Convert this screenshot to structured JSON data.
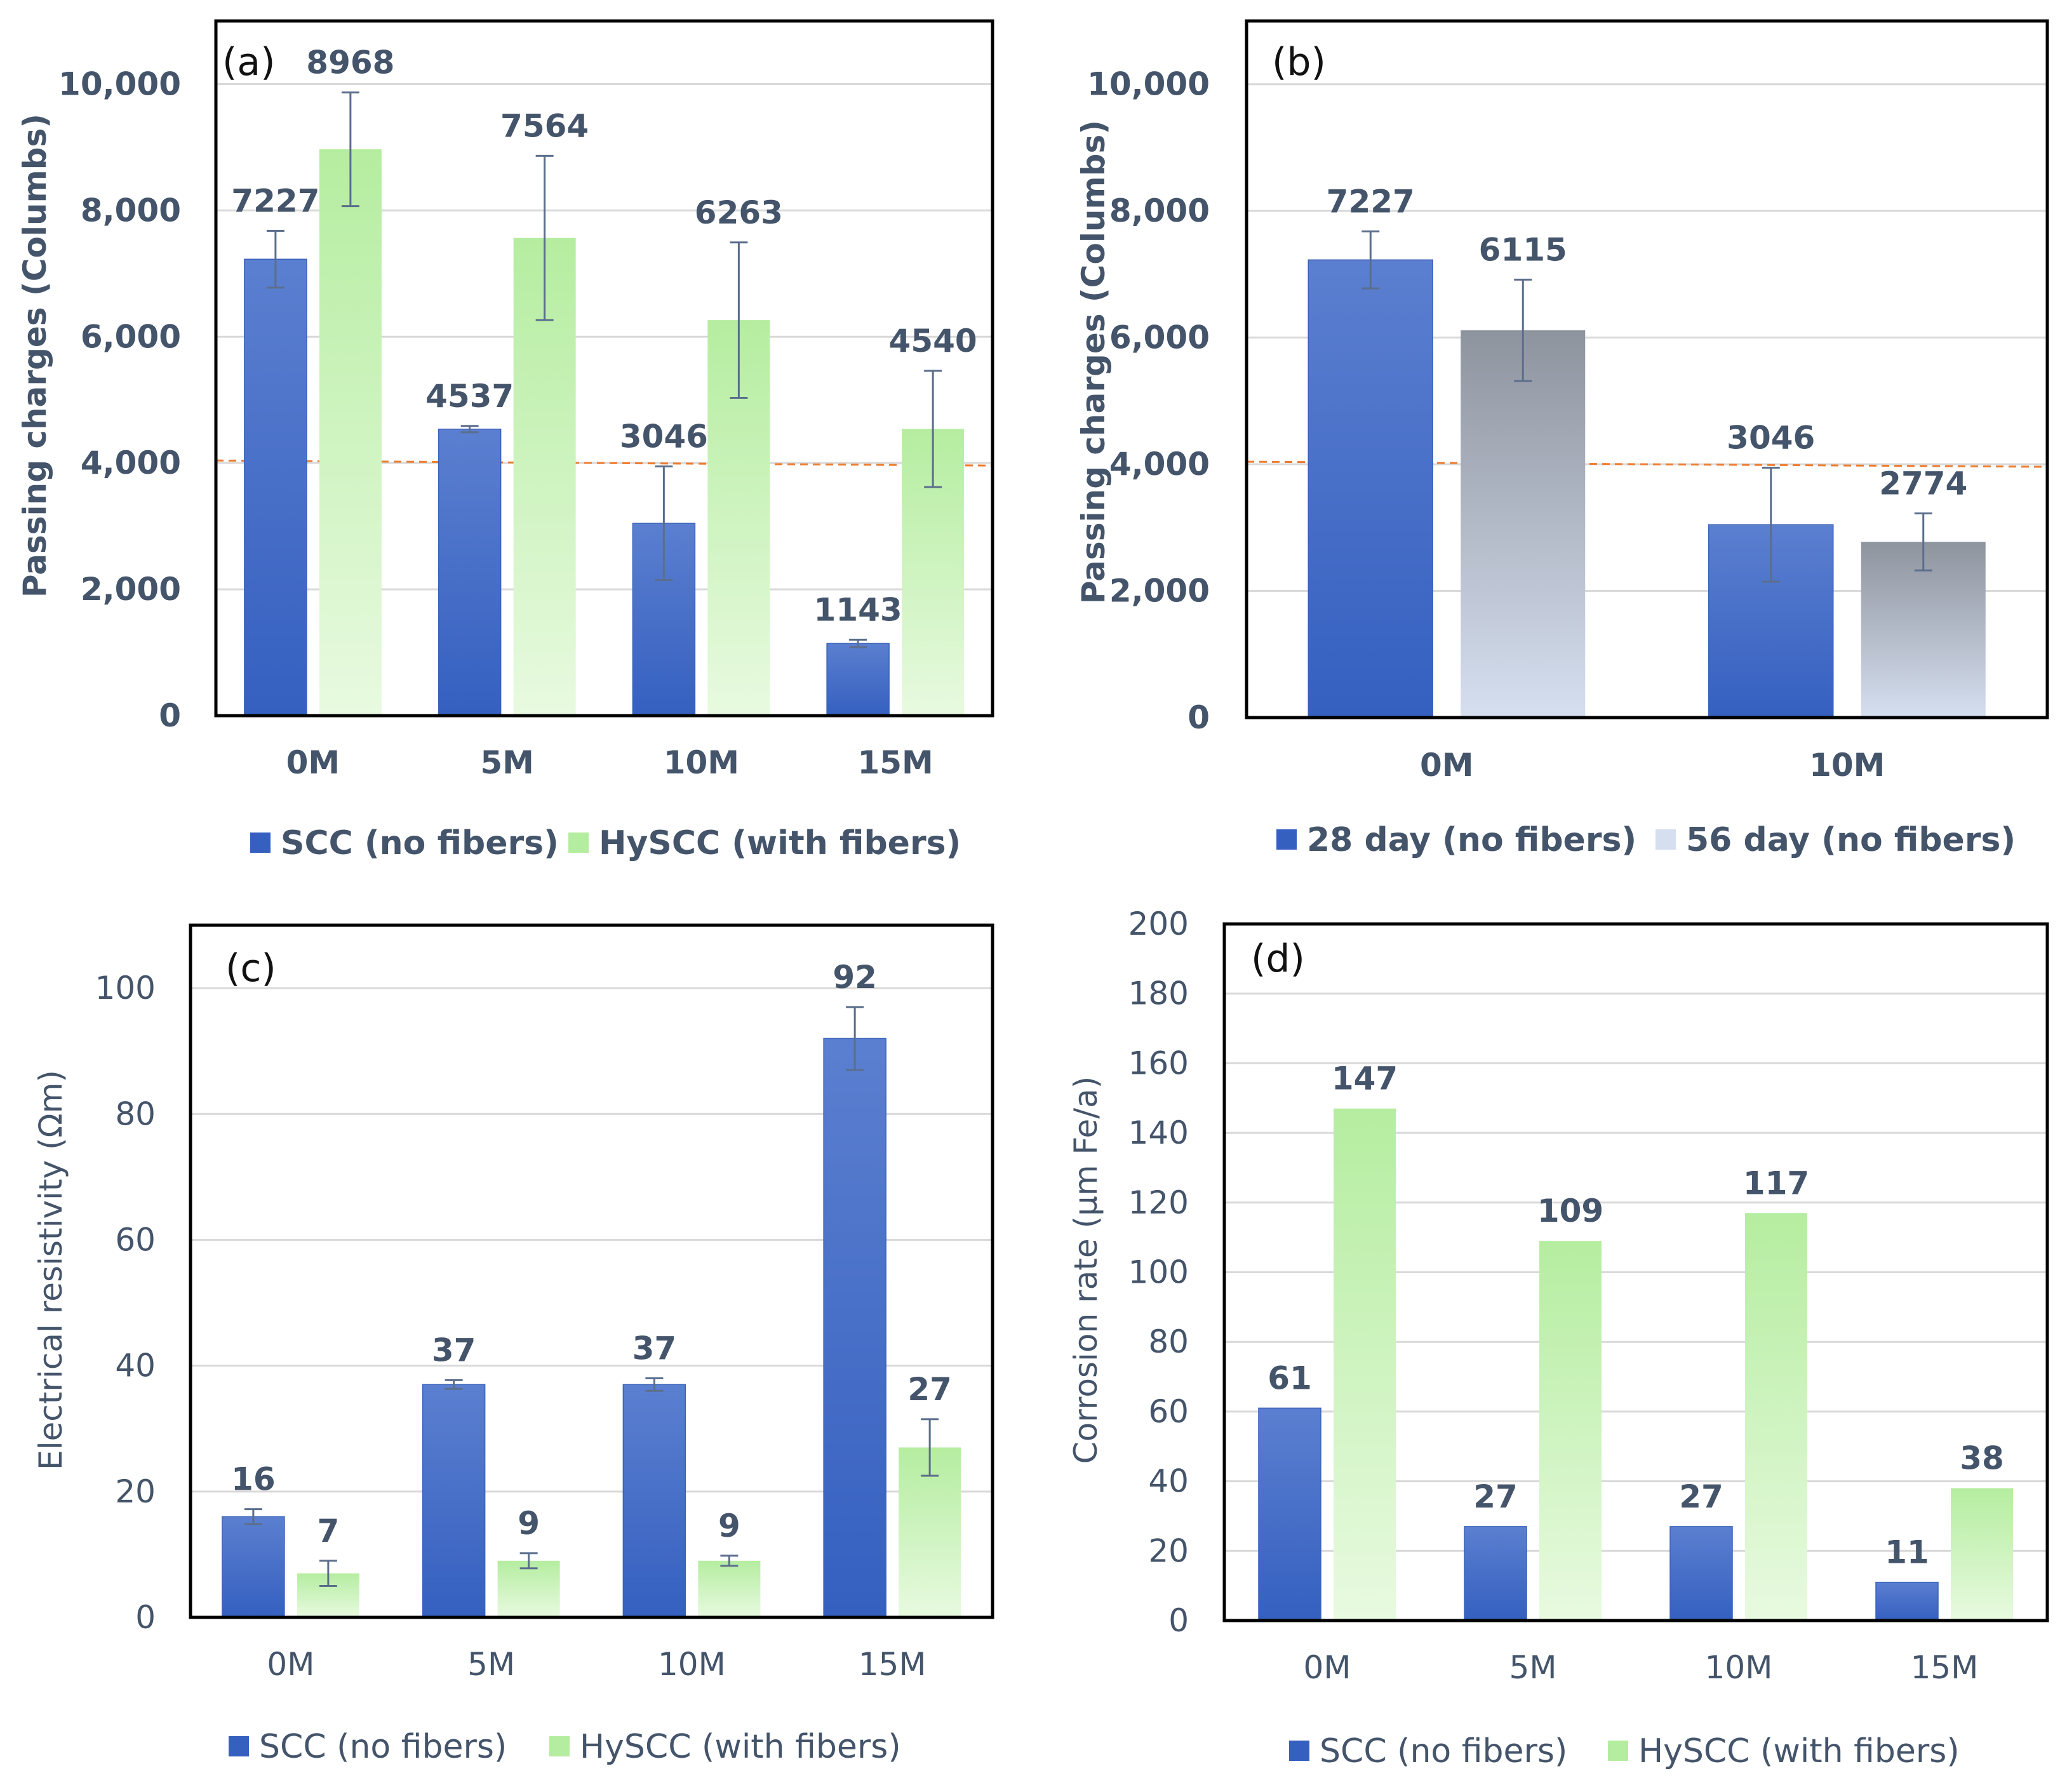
{
  "chart_data": [
    {
      "id": "a",
      "type": "bar",
      "panel_label": "(a)",
      "ylabel": "Passing charges (Columbs)",
      "ylim": [
        0,
        11000
      ],
      "yticks": [
        0,
        2000,
        4000,
        6000,
        8000,
        10000
      ],
      "ytick_labels": [
        "0",
        "2,000",
        "4,000",
        "6,000",
        "8,000",
        "10,000"
      ],
      "categories": [
        "0M",
        "5M",
        "10M",
        "15M"
      ],
      "series": [
        {
          "name": "SCC (no fibers)",
          "values": [
            7227,
            4537,
            3046,
            1143
          ],
          "errors": [
            450,
            50,
            900,
            60
          ],
          "data_labels": [
            "7227",
            "4537",
            "3046",
            "1143"
          ],
          "color_top": "#5b7fd0",
          "color_bottom": "#3560c0"
        },
        {
          "name": "HySCC (with fibers)",
          "values": [
            8968,
            7564,
            6263,
            4540
          ],
          "errors": [
            900,
            1300,
            1230,
            920
          ],
          "data_labels": [
            "8968",
            "7564",
            "6263",
            "4540"
          ],
          "color_top": "#b5eda0",
          "color_bottom": "#e8fae0"
        }
      ],
      "reference_line": 4000,
      "reference_color": "#ed7d31",
      "bold_text": true,
      "grid": true,
      "legend": "bottom"
    },
    {
      "id": "b",
      "type": "bar",
      "panel_label": "(b)",
      "ylabel": "Passing charges (Columbs)",
      "ylim": [
        0,
        11000
      ],
      "yticks": [
        0,
        2000,
        4000,
        6000,
        8000,
        10000
      ],
      "ytick_labels": [
        "0",
        "2,000",
        "4,000",
        "6,000",
        "8,000",
        "10,000"
      ],
      "categories": [
        "0M",
        "10M"
      ],
      "series": [
        {
          "name": "28 day (no fibers)",
          "values": [
            7227,
            3046
          ],
          "errors": [
            450,
            900
          ],
          "data_labels": [
            "7227",
            "3046"
          ],
          "color_top": "#5b7fd0",
          "color_bottom": "#3560c0"
        },
        {
          "name": "56 day (no fibers)",
          "values": [
            6115,
            2774
          ],
          "errors": [
            800,
            450
          ],
          "data_labels": [
            "6115",
            "2774"
          ],
          "color_top": "#8e949e",
          "color_bottom": "#d6dff0"
        }
      ],
      "reference_line": 4000,
      "reference_color": "#ed7d31",
      "bold_text": true,
      "grid": true,
      "legend": "bottom"
    },
    {
      "id": "c",
      "type": "bar",
      "panel_label": "(c)",
      "ylabel": "Electrical resistivity (Ωm)",
      "ylim": [
        0,
        110
      ],
      "yticks": [
        0,
        20,
        40,
        60,
        80,
        100
      ],
      "ytick_labels": [
        "0",
        "20",
        "40",
        "60",
        "80",
        "100"
      ],
      "categories": [
        "0M",
        "5M",
        "10M",
        "15M"
      ],
      "series": [
        {
          "name": "SCC (no fibers)",
          "values": [
            16,
            37,
            37,
            92
          ],
          "errors": [
            1.2,
            0.7,
            1.0,
            5
          ],
          "data_labels": [
            "16",
            "37",
            "37",
            "92"
          ],
          "color_top": "#5b7fd0",
          "color_bottom": "#3560c0"
        },
        {
          "name": "HySCC (with fibers)",
          "values": [
            7,
            9,
            9,
            27
          ],
          "errors": [
            2,
            1.2,
            0.8,
            4.5
          ],
          "data_labels": [
            "7",
            "9",
            "9",
            "27"
          ],
          "color_top": "#b5eda0",
          "color_bottom": "#e8fae0"
        }
      ],
      "bold_text": false,
      "grid": true,
      "legend": "bottom"
    },
    {
      "id": "d",
      "type": "bar",
      "panel_label": "(d)",
      "ylabel": "Corrosion rate (μm Fe/a)",
      "ylim": [
        0,
        200
      ],
      "yticks": [
        0,
        20,
        40,
        60,
        80,
        100,
        120,
        140,
        160,
        180,
        200
      ],
      "ytick_labels": [
        "0",
        "20",
        "40",
        "60",
        "80",
        "100",
        "120",
        "140",
        "160",
        "180",
        "200"
      ],
      "categories": [
        "0M",
        "5M",
        "10M",
        "15M"
      ],
      "series": [
        {
          "name": "SCC (no fibers)",
          "values": [
            61,
            27,
            27,
            11
          ],
          "data_labels": [
            "61",
            "27",
            "27",
            "11"
          ],
          "color_top": "#5b7fd0",
          "color_bottom": "#3560c0"
        },
        {
          "name": "HySCC (with fibers)",
          "values": [
            147,
            109,
            117,
            38
          ],
          "data_labels": [
            "147",
            "109",
            "117",
            "38"
          ],
          "color_top": "#b5eda0",
          "color_bottom": "#e8fae0"
        }
      ],
      "bold_text": false,
      "grid": true,
      "legend": "bottom"
    }
  ]
}
